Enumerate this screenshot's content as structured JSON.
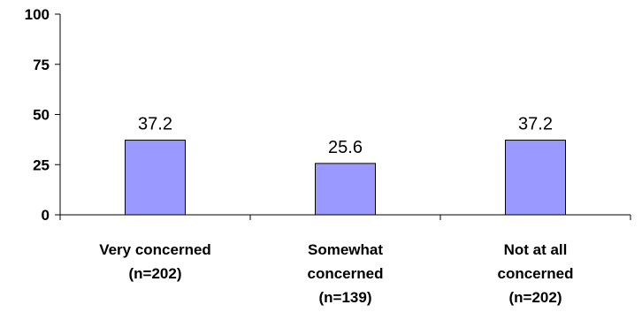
{
  "chart_data": {
    "type": "bar",
    "categories": [
      [
        "Very concerned",
        "(n=202)"
      ],
      [
        "Somewhat",
        "concerned",
        "(n=139)"
      ],
      [
        "Not at all",
        "concerned",
        "(n=202)"
      ]
    ],
    "values": [
      37.2,
      25.6,
      37.2
    ],
    "data_labels": [
      "37.2",
      "25.6",
      "37.2"
    ],
    "yticks": [
      "0",
      "25",
      "50",
      "75",
      "100"
    ],
    "ylim": [
      0,
      100
    ],
    "title": "",
    "xlabel": "",
    "ylabel": "",
    "grid": false,
    "bar_color": "#9999ff",
    "bar_outline": "#000000"
  }
}
